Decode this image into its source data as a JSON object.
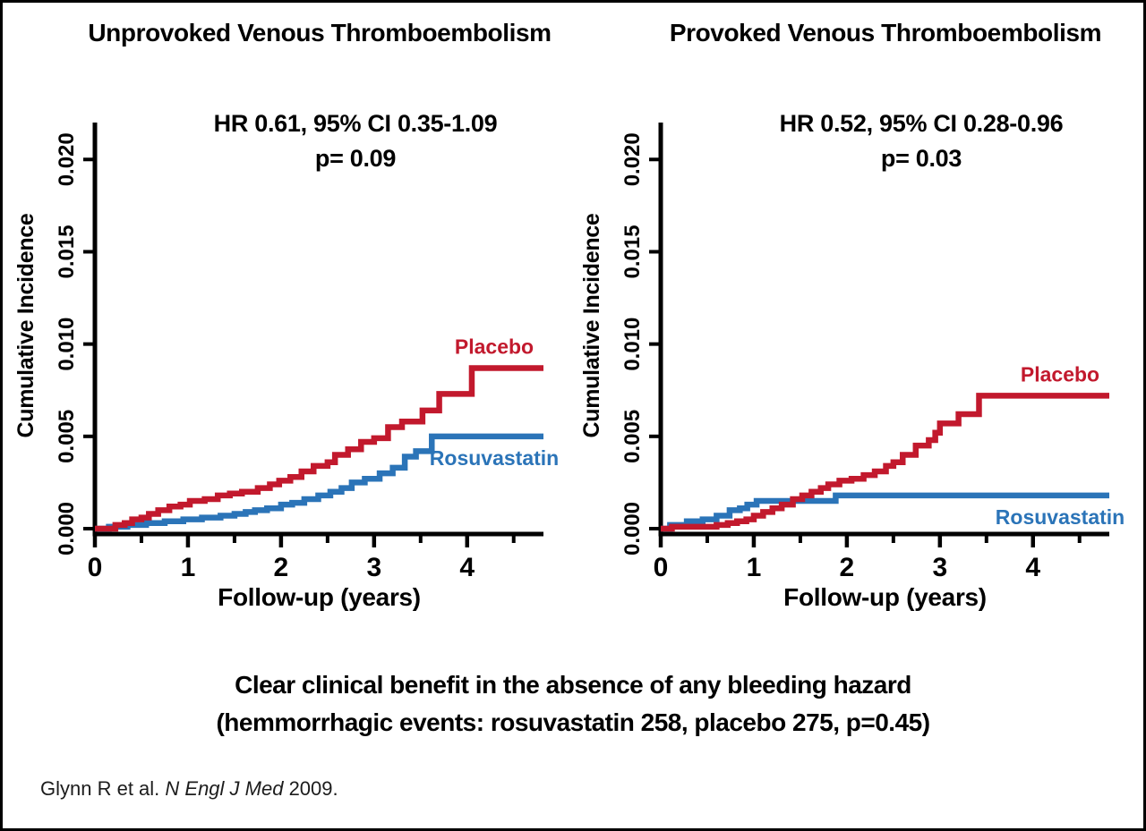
{
  "figure": {
    "caption_line1": "Clear clinical benefit in the absence of any bleeding hazard",
    "caption_line2": "(hemmorrhagic events: rosuvastatin 258, placebo 275, p=0.45)",
    "citation": {
      "prefix": "Glynn R et al. ",
      "journal": "N Engl J Med",
      "suffix": " 2009."
    }
  },
  "colors": {
    "placebo": "#C2192D",
    "rosuvastatin": "#2B74B8",
    "axis": "#000000"
  },
  "chart_data": [
    {
      "type": "line",
      "line_style": "step",
      "title": "Unprovoked Venous Thromboembolism",
      "annotation_hr": "HR 0.61, 95% CI 0.35-1.09",
      "annotation_p": "p= 0.09",
      "xlabel": "Follow-up (years)",
      "ylabel": "Cumulative Incidence",
      "xlim": [
        0,
        4.82
      ],
      "ylim": [
        0,
        0.022
      ],
      "xticks": [
        0,
        1,
        2,
        3,
        4
      ],
      "xtick_labels": [
        "0",
        "1",
        "2",
        "3",
        "4"
      ],
      "xticks_minor": [
        0.5,
        1.5,
        2.5,
        3.5,
        4.5
      ],
      "yticks": [
        0,
        0.005,
        0.01,
        0.015,
        0.02
      ],
      "ytick_labels": [
        "0.000",
        "0.005",
        "0.010",
        "0.015",
        "0.020"
      ],
      "grid": false,
      "legend_position": "end-of-line",
      "series": [
        {
          "name": "Rosuvastatin",
          "color": "#2B74B8",
          "label_position": "below-end",
          "steps": [
            [
              0,
              0
            ],
            [
              0.15,
              0.0001
            ],
            [
              0.35,
              0.0002
            ],
            [
              0.55,
              0.0003
            ],
            [
              0.75,
              0.0004
            ],
            [
              0.95,
              0.0005
            ],
            [
              1.15,
              0.0006
            ],
            [
              1.35,
              0.0007
            ],
            [
              1.5,
              0.0008
            ],
            [
              1.62,
              0.0009
            ],
            [
              1.72,
              0.001
            ],
            [
              1.85,
              0.0011
            ],
            [
              2.0,
              0.0013
            ],
            [
              2.12,
              0.0014
            ],
            [
              2.25,
              0.0016
            ],
            [
              2.4,
              0.0018
            ],
            [
              2.53,
              0.002
            ],
            [
              2.65,
              0.0022
            ],
            [
              2.76,
              0.0025
            ],
            [
              2.9,
              0.0027
            ],
            [
              3.06,
              0.003
            ],
            [
              3.2,
              0.0033
            ],
            [
              3.33,
              0.0039
            ],
            [
              3.45,
              0.0042
            ],
            [
              3.62,
              0.005
            ]
          ]
        },
        {
          "name": "Placebo",
          "color": "#C2192D",
          "label_position": "above-end",
          "steps": [
            [
              0,
              0
            ],
            [
              0.22,
              0.0002
            ],
            [
              0.32,
              0.0003
            ],
            [
              0.4,
              0.0005
            ],
            [
              0.5,
              0.0006
            ],
            [
              0.58,
              0.0008
            ],
            [
              0.68,
              0.001
            ],
            [
              0.8,
              0.0012
            ],
            [
              0.92,
              0.0013
            ],
            [
              1.02,
              0.0015
            ],
            [
              1.18,
              0.0016
            ],
            [
              1.32,
              0.0018
            ],
            [
              1.45,
              0.0019
            ],
            [
              1.58,
              0.002
            ],
            [
              1.75,
              0.0022
            ],
            [
              1.88,
              0.0024
            ],
            [
              1.98,
              0.0026
            ],
            [
              2.1,
              0.0028
            ],
            [
              2.22,
              0.0031
            ],
            [
              2.35,
              0.0034
            ],
            [
              2.5,
              0.0036
            ],
            [
              2.58,
              0.004
            ],
            [
              2.72,
              0.0043
            ],
            [
              2.86,
              0.0047
            ],
            [
              3.0,
              0.0049
            ],
            [
              3.15,
              0.0055
            ],
            [
              3.3,
              0.0058
            ],
            [
              3.52,
              0.0064
            ],
            [
              3.7,
              0.0073
            ],
            [
              4.05,
              0.0087
            ]
          ]
        }
      ]
    },
    {
      "type": "line",
      "line_style": "step",
      "title": "Provoked Venous Thromboembolism",
      "annotation_hr": "HR 0.52, 95% CI 0.28-0.96",
      "annotation_p": "p= 0.03",
      "xlabel": "Follow-up (years)",
      "ylabel": "Cumulative Incidence",
      "xlim": [
        0,
        4.82
      ],
      "ylim": [
        0,
        0.022
      ],
      "xticks": [
        0,
        1,
        2,
        3,
        4
      ],
      "xtick_labels": [
        "0",
        "1",
        "2",
        "3",
        "4"
      ],
      "xticks_minor": [
        0.5,
        1.5,
        2.5,
        3.5,
        4.5
      ],
      "yticks": [
        0,
        0.005,
        0.01,
        0.015,
        0.02
      ],
      "ytick_labels": [
        "0.000",
        "0.005",
        "0.010",
        "0.015",
        "0.020"
      ],
      "grid": false,
      "legend_position": "end-of-line",
      "series": [
        {
          "name": "Rosuvastatin",
          "color": "#2B74B8",
          "label_position": "below-end",
          "steps": [
            [
              0,
              0
            ],
            [
              0.1,
              0.0002
            ],
            [
              0.28,
              0.0004
            ],
            [
              0.45,
              0.0005
            ],
            [
              0.6,
              0.0007
            ],
            [
              0.74,
              0.001
            ],
            [
              0.85,
              0.0011
            ],
            [
              0.93,
              0.0013
            ],
            [
              1.03,
              0.0015
            ],
            [
              1.88,
              0.0018
            ]
          ]
        },
        {
          "name": "Placebo",
          "color": "#C2192D",
          "label_position": "above-end",
          "steps": [
            [
              0,
              0
            ],
            [
              0.12,
              0.0001
            ],
            [
              0.6,
              0.0002
            ],
            [
              0.72,
              0.0003
            ],
            [
              0.82,
              0.0004
            ],
            [
              0.92,
              0.0005
            ],
            [
              1.0,
              0.0007
            ],
            [
              1.1,
              0.0009
            ],
            [
              1.2,
              0.0011
            ],
            [
              1.3,
              0.0013
            ],
            [
              1.42,
              0.0016
            ],
            [
              1.52,
              0.0018
            ],
            [
              1.62,
              0.002
            ],
            [
              1.72,
              0.0022
            ],
            [
              1.8,
              0.0024
            ],
            [
              1.92,
              0.0026
            ],
            [
              2.05,
              0.0027
            ],
            [
              2.18,
              0.0029
            ],
            [
              2.3,
              0.0031
            ],
            [
              2.42,
              0.0034
            ],
            [
              2.5,
              0.0036
            ],
            [
              2.6,
              0.004
            ],
            [
              2.74,
              0.0045
            ],
            [
              2.88,
              0.0048
            ],
            [
              2.95,
              0.0052
            ],
            [
              3.0,
              0.0057
            ],
            [
              3.2,
              0.0062
            ],
            [
              3.42,
              0.0072
            ]
          ]
        }
      ]
    }
  ]
}
